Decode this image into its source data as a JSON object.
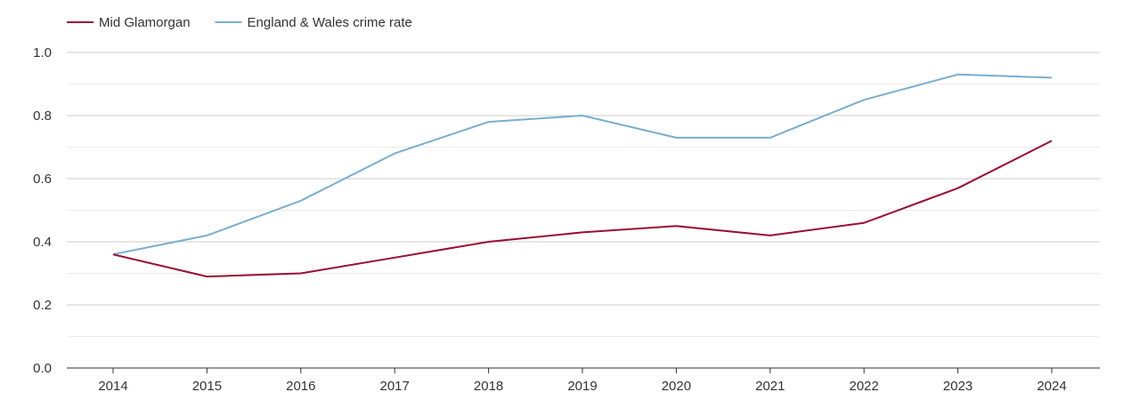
{
  "chart_data": {
    "type": "line",
    "title": "",
    "xlabel": "",
    "ylabel": "",
    "x": [
      2014,
      2015,
      2016,
      2017,
      2018,
      2019,
      2020,
      2021,
      2022,
      2023,
      2024
    ],
    "x_tick_labels": [
      "2014",
      "2015",
      "2016",
      "2017",
      "2018",
      "2019",
      "2020",
      "2021",
      "2022",
      "2023",
      "2024"
    ],
    "ylim": [
      0,
      1.0
    ],
    "y_ticks": [
      0.0,
      0.2,
      0.4,
      0.6,
      0.8,
      1.0
    ],
    "y_tick_labels": [
      "0.0",
      "0.2",
      "0.4",
      "0.6",
      "0.8",
      "1.0"
    ],
    "grid": true,
    "legend_position": "top-left",
    "series": [
      {
        "name": "Mid Glamorgan",
        "color": "#9b0d35",
        "values": [
          0.36,
          0.29,
          0.3,
          0.35,
          0.4,
          0.43,
          0.45,
          0.42,
          0.46,
          0.57,
          0.72
        ]
      },
      {
        "name": "England & Wales crime rate",
        "color": "#7aaed0",
        "values": [
          0.36,
          0.42,
          0.53,
          0.68,
          0.78,
          0.8,
          0.73,
          0.73,
          0.85,
          0.93,
          0.92
        ]
      }
    ]
  }
}
